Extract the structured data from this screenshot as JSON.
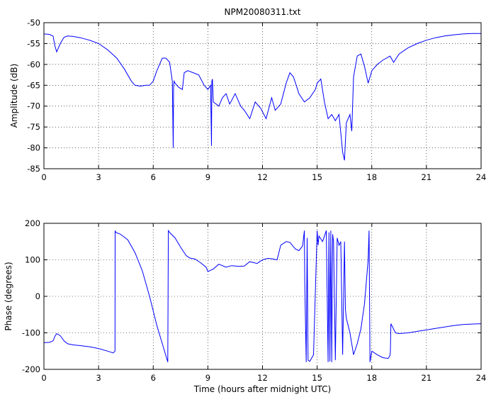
{
  "chart_data": [
    {
      "type": "line",
      "title": "NPM20080311.txt",
      "xlabel": "",
      "ylabel": "Amplitude (dB)",
      "xlim": [
        0,
        24
      ],
      "ylim": [
        -85,
        -50
      ],
      "xticks": [
        0,
        3,
        6,
        9,
        12,
        15,
        18,
        21,
        24
      ],
      "yticks": [
        -85,
        -80,
        -75,
        -70,
        -65,
        -60,
        -55,
        -50
      ],
      "grid": true,
      "line_color": "#0000ff",
      "series": [
        {
          "x": [
            0,
            0.3,
            0.5,
            0.6,
            0.7,
            0.9,
            1.1,
            1.3,
            1.6,
            2.0,
            2.5,
            3.0,
            3.5,
            4.0,
            4.4,
            4.8,
            5.0,
            5.3,
            5.6,
            5.8,
            6.0,
            6.2,
            6.4,
            6.5,
            6.7,
            6.9,
            7.05,
            7.1,
            7.12,
            7.15,
            7.2,
            7.4,
            7.6,
            7.7,
            7.9,
            8.2,
            8.5,
            8.8,
            9.0,
            9.15,
            9.2,
            9.22,
            9.25,
            9.3,
            9.6,
            9.8,
            10.0,
            10.2,
            10.5,
            10.8,
            11.0,
            11.3,
            11.6,
            11.9,
            12.2,
            12.5,
            12.7,
            13.0,
            13.3,
            13.5,
            13.7,
            14.0,
            14.3,
            14.6,
            14.9,
            15.0,
            15.2,
            15.4,
            15.6,
            15.8,
            16.0,
            16.2,
            16.4,
            16.5,
            16.6,
            16.8,
            16.9,
            17.0,
            17.2,
            17.4,
            17.6,
            17.8,
            18.0,
            18.3,
            18.6,
            19.0,
            19.2,
            19.5,
            20.0,
            20.5,
            21.0,
            21.5,
            22.0,
            22.5,
            23.0,
            23.5,
            24.0
          ],
          "y": [
            -52.7,
            -52.8,
            -53.2,
            -55.5,
            -57.0,
            -55.0,
            -53.5,
            -53.2,
            -53.3,
            -53.6,
            -54.2,
            -55.0,
            -56.5,
            -58.5,
            -61.0,
            -64.0,
            -65.0,
            -65.2,
            -65.0,
            -65.0,
            -64.0,
            -61.5,
            -59.5,
            -58.5,
            -58.5,
            -59.5,
            -64.0,
            -80.0,
            -65.0,
            -64.0,
            -64.5,
            -65.5,
            -66.0,
            -62.0,
            -61.5,
            -62.0,
            -62.5,
            -65.0,
            -66.0,
            -65.0,
            -79.5,
            -64.0,
            -63.5,
            -69.0,
            -70.0,
            -68.0,
            -67.0,
            -69.5,
            -67.0,
            -70.0,
            -71.0,
            -73.0,
            -69.0,
            -70.5,
            -73.0,
            -68.0,
            -71.0,
            -69.5,
            -64.5,
            -62.0,
            -63.0,
            -67.0,
            -69.0,
            -68.0,
            -66.0,
            -64.5,
            -63.5,
            -69.0,
            -73.0,
            -72.0,
            -73.5,
            -72.0,
            -81.0,
            -83.0,
            -74.0,
            -72.0,
            -76.0,
            -63.0,
            -58.0,
            -57.5,
            -60.5,
            -64.5,
            -61.5,
            -60.0,
            -59.0,
            -58.0,
            -59.5,
            -57.5,
            -56.0,
            -55.0,
            -54.2,
            -53.6,
            -53.2,
            -52.9,
            -52.7,
            -52.6,
            -52.6
          ]
        }
      ]
    },
    {
      "type": "line",
      "title": "",
      "xlabel": "Time (hours after midnight UTC)",
      "ylabel": "Phase (degrees)",
      "xlim": [
        0,
        24
      ],
      "ylim": [
        -200,
        200
      ],
      "xticks": [
        0,
        3,
        6,
        9,
        12,
        15,
        18,
        21,
        24
      ],
      "yticks": [
        -200,
        -100,
        0,
        100,
        200
      ],
      "grid": true,
      "line_color": "#0000ff",
      "series": [
        {
          "x": [
            0,
            0.3,
            0.5,
            0.6,
            0.7,
            0.9,
            1.1,
            1.3,
            1.6,
            2.0,
            2.5,
            3.0,
            3.5,
            3.8,
            3.9,
            3.91,
            3.95,
            4.2,
            4.6,
            5.0,
            5.4,
            5.8,
            6.2,
            6.5,
            6.8,
            6.83,
            6.9,
            7.2,
            7.5,
            7.8,
            8.0,
            8.3,
            8.6,
            8.9,
            9.0,
            9.3,
            9.6,
            10.0,
            10.3,
            10.7,
            11.0,
            11.3,
            11.7,
            12.0,
            12.3,
            12.5,
            12.8,
            13.0,
            13.3,
            13.5,
            13.8,
            14.0,
            14.2,
            14.3,
            14.32,
            14.4,
            14.45,
            14.5,
            14.6,
            14.8,
            15.0,
            15.05,
            15.1,
            15.3,
            15.5,
            15.6,
            15.65,
            15.7,
            15.75,
            15.8,
            15.85,
            15.9,
            16.0,
            16.1,
            16.2,
            16.3,
            16.4,
            16.5,
            16.55,
            16.6,
            16.8,
            17.0,
            17.2,
            17.4,
            17.6,
            17.8,
            17.85,
            17.9,
            18.0,
            18.3,
            18.6,
            18.9,
            19.0,
            19.02,
            19.05,
            19.3,
            19.5,
            20.0,
            20.5,
            21.0,
            21.5,
            22.0,
            22.5,
            23.0,
            23.5,
            24.0
          ],
          "y": [
            -127,
            -126,
            -122,
            -110,
            -102,
            -108,
            -122,
            -130,
            -133,
            -135,
            -138,
            -143,
            -150,
            -155,
            -150,
            180,
            175,
            170,
            155,
            120,
            70,
            0,
            -80,
            -130,
            -180,
            180,
            175,
            160,
            135,
            112,
            105,
            102,
            92,
            80,
            68,
            75,
            88,
            80,
            84,
            82,
            83,
            95,
            90,
            100,
            104,
            103,
            100,
            140,
            150,
            148,
            130,
            125,
            138,
            180,
            40,
            -180,
            160,
            -175,
            -178,
            -160,
            180,
            140,
            165,
            150,
            180,
            -180,
            175,
            -178,
            180,
            -180,
            170,
            150,
            -175,
            160,
            140,
            150,
            -160,
            150,
            -35,
            -60,
            -100,
            -160,
            -130,
            -90,
            -20,
            100,
            180,
            -180,
            -150,
            -160,
            -168,
            -170,
            -162,
            -150,
            -75,
            -100,
            -102,
            -100,
            -96,
            -92,
            -88,
            -84,
            -80,
            -77,
            -76,
            -75
          ]
        }
      ]
    }
  ]
}
